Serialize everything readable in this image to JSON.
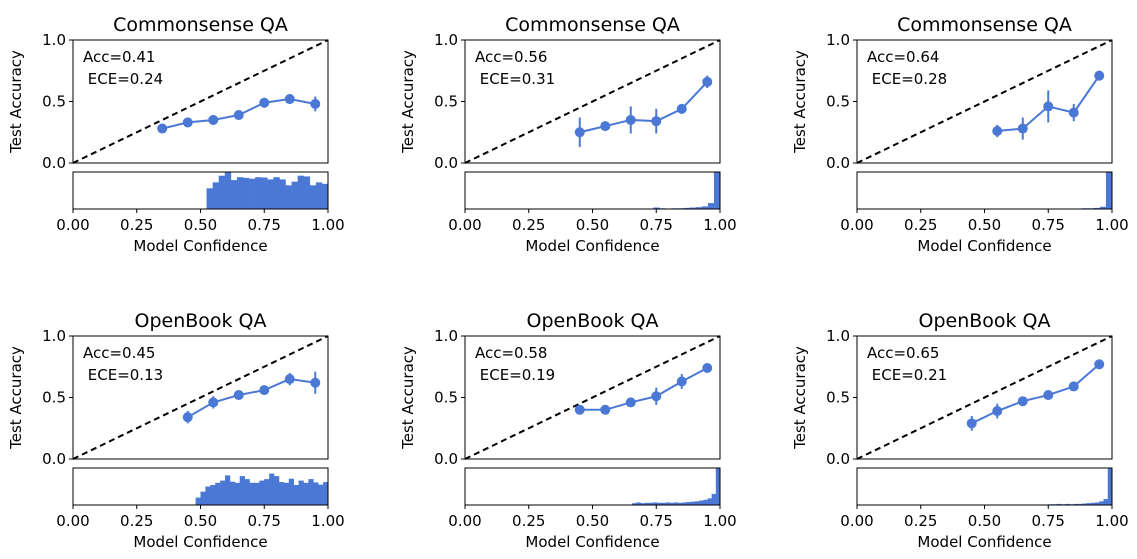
{
  "figure": {
    "xlabel": "Model Confidence",
    "ylabel": "Test Accuracy",
    "reliability_ylim": [
      0.0,
      1.0
    ],
    "reliability_yticks": [
      "0.0",
      "0.5",
      "1.0"
    ],
    "xlim": [
      0.0,
      1.0
    ],
    "xticks": [
      "0.00",
      "0.25",
      "0.50",
      "0.75",
      "1.00"
    ],
    "colors": {
      "series": "#4a78d4",
      "diagonal": "#000000"
    }
  },
  "chart_data": [
    {
      "type": "line",
      "title": "Commonsense QA",
      "annotation": [
        "Acc=0.41",
        " ECE=0.24"
      ],
      "x": [
        0.35,
        0.45,
        0.55,
        0.65,
        0.75,
        0.85,
        0.95
      ],
      "y": [
        0.28,
        0.33,
        0.35,
        0.39,
        0.49,
        0.52,
        0.48
      ],
      "yerr": [
        0.02,
        0.04,
        0.04,
        0.03,
        0.04,
        0.04,
        0.06
      ],
      "hist": [
        0,
        0,
        0,
        0,
        0,
        0,
        0,
        0,
        0,
        0,
        0,
        0,
        0,
        0,
        0,
        0,
        0,
        0,
        0,
        0,
        0,
        0,
        0.56,
        0.72,
        0.9,
        1.0,
        0.78,
        0.86,
        0.84,
        0.82,
        0.86,
        0.85,
        0.8,
        0.86,
        0.8,
        0.64,
        0.74,
        0.9,
        0.88,
        0.64,
        0.72,
        0.68
      ],
      "xlim": [
        0,
        1
      ],
      "ylim": [
        0,
        1
      ]
    },
    {
      "type": "line",
      "title": "Commonsense QA",
      "annotation": [
        "Acc=0.56",
        " ECE=0.31"
      ],
      "x": [
        0.45,
        0.55,
        0.65,
        0.75,
        0.85,
        0.95
      ],
      "y": [
        0.25,
        0.3,
        0.35,
        0.34,
        0.44,
        0.66
      ],
      "yerr": [
        0.12,
        0.02,
        0.11,
        0.1,
        0.04,
        0.05
      ],
      "hist": [
        0,
        0,
        0,
        0,
        0,
        0,
        0,
        0,
        0,
        0,
        0,
        0,
        0,
        0,
        0,
        0,
        0,
        0,
        0,
        0,
        0,
        0,
        0,
        0,
        0,
        0,
        0,
        0,
        0,
        0,
        0,
        0.04,
        0.02,
        0.01,
        0.02,
        0.02,
        0.03,
        0.04,
        0.05,
        0.07,
        0.16,
        1.0
      ],
      "xlim": [
        0,
        1
      ],
      "ylim": [
        0,
        1
      ]
    },
    {
      "type": "line",
      "title": "Commonsense QA",
      "annotation": [
        "Acc=0.64",
        " ECE=0.28"
      ],
      "x": [
        0.55,
        0.65,
        0.75,
        0.85,
        0.95
      ],
      "y": [
        0.26,
        0.28,
        0.46,
        0.41,
        0.71
      ],
      "yerr": [
        0.05,
        0.09,
        0.13,
        0.07,
        0.04
      ],
      "hist": [
        0,
        0,
        0,
        0,
        0,
        0,
        0,
        0,
        0,
        0,
        0,
        0,
        0,
        0,
        0,
        0,
        0,
        0,
        0,
        0,
        0,
        0,
        0,
        0,
        0,
        0,
        0,
        0,
        0,
        0,
        0,
        0,
        0,
        0,
        0,
        0.01,
        0.01,
        0.02,
        0.02,
        0.03,
        0.06,
        1.0
      ],
      "xlim": [
        0,
        1
      ],
      "ylim": [
        0,
        1
      ]
    },
    {
      "type": "line",
      "title": "OpenBook QA",
      "annotation": [
        "Acc=0.45",
        " ECE=0.13"
      ],
      "x": [
        0.45,
        0.55,
        0.65,
        0.75,
        0.85,
        0.95
      ],
      "y": [
        0.34,
        0.46,
        0.52,
        0.56,
        0.65,
        0.62
      ],
      "yerr": [
        0.05,
        0.05,
        0.03,
        0.03,
        0.05,
        0.09
      ],
      "hist": [
        0,
        0,
        0,
        0,
        0,
        0,
        0,
        0,
        0,
        0,
        0,
        0,
        0,
        0,
        0,
        0,
        0,
        0,
        0,
        0,
        0,
        0,
        0,
        0,
        0,
        0.2,
        0.36,
        0.5,
        0.54,
        0.6,
        0.66,
        0.8,
        0.63,
        0.6,
        0.78,
        0.7,
        0.6,
        0.6,
        0.66,
        0.7,
        0.85,
        0.78,
        0.62,
        0.6,
        0.71,
        0.54,
        0.66,
        0.6,
        0.7,
        0.61,
        0.55,
        0.62
      ],
      "xlim": [
        0,
        1
      ],
      "ylim": [
        0,
        1
      ]
    },
    {
      "type": "line",
      "title": "OpenBook QA",
      "annotation": [
        "Acc=0.58",
        " ECE=0.19"
      ],
      "x": [
        0.45,
        0.55,
        0.65,
        0.75,
        0.85,
        0.95
      ],
      "y": [
        0.4,
        0.4,
        0.46,
        0.51,
        0.63,
        0.74
      ],
      "yerr": [
        0.03,
        0.02,
        0.03,
        0.07,
        0.06,
        0.02
      ],
      "hist": [
        0,
        0,
        0,
        0,
        0,
        0,
        0,
        0,
        0,
        0,
        0,
        0,
        0,
        0,
        0,
        0,
        0,
        0,
        0,
        0,
        0,
        0,
        0,
        0,
        0,
        0,
        0,
        0,
        0,
        0,
        0,
        0,
        0,
        0,
        0,
        0,
        0,
        0,
        0,
        0,
        0.05,
        0.07,
        0.05,
        0.06,
        0.06,
        0.07,
        0.06,
        0.06,
        0.07,
        0.06,
        0.07,
        0.06,
        0.07,
        0.08,
        0.09,
        0.1,
        0.12,
        0.14,
        0.18,
        0.3,
        1.0
      ],
      "xlim": [
        0,
        1
      ],
      "ylim": [
        0,
        1
      ]
    },
    {
      "type": "line",
      "title": "OpenBook QA",
      "annotation": [
        "Acc=0.65",
        " ECE=0.21"
      ],
      "x": [
        0.45,
        0.55,
        0.65,
        0.75,
        0.85,
        0.95
      ],
      "y": [
        0.29,
        0.39,
        0.47,
        0.52,
        0.59,
        0.77
      ],
      "yerr": [
        0.06,
        0.06,
        0.02,
        0.03,
        0.02,
        0.02
      ],
      "hist": [
        0,
        0,
        0,
        0,
        0,
        0,
        0,
        0,
        0,
        0,
        0,
        0,
        0,
        0,
        0,
        0,
        0,
        0,
        0,
        0,
        0,
        0,
        0,
        0,
        0,
        0,
        0,
        0,
        0,
        0,
        0,
        0,
        0,
        0,
        0,
        0,
        0,
        0,
        0,
        0,
        0,
        0,
        0,
        0,
        0,
        0.02,
        0.02,
        0.03,
        0.02,
        0.03,
        0.02,
        0.03,
        0.03,
        0.04,
        0.05,
        0.06,
        0.07,
        0.1,
        0.16,
        1.0
      ],
      "xlim": [
        0,
        1
      ],
      "ylim": [
        0,
        1
      ]
    }
  ]
}
